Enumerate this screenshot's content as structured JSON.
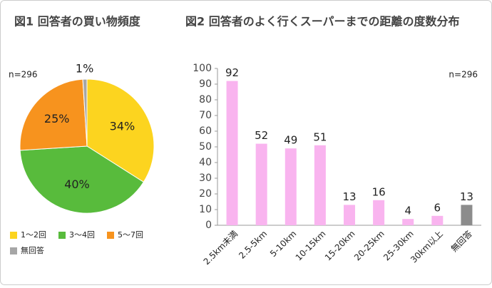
{
  "chart_data": [
    {
      "type": "pie",
      "title": "図1 回答者の買い物頻度",
      "annotation": "n=296",
      "categories": [
        "1～2回",
        "3～4回",
        "5～7回",
        "無回答"
      ],
      "values": [
        34,
        40,
        25,
        1
      ],
      "value_labels": [
        "34%",
        "40%",
        "25%",
        "1%"
      ],
      "colors": [
        "#fcd41f",
        "#58bb3c",
        "#f7931e",
        "#a6a6a6"
      ]
    },
    {
      "type": "bar",
      "title": "図2 回答者のよく行くスーパーまでの距離の度数分布",
      "annotation": "n=296",
      "categories": [
        "2.5km未満",
        "2.5-5km",
        "5-10km",
        "10-15km",
        "15-20km",
        "20-25km",
        "25-30km",
        "30km以上",
        "無回答"
      ],
      "values": [
        92,
        52,
        49,
        51,
        13,
        16,
        4,
        6,
        13
      ],
      "colors": [
        "#f9b4ef",
        "#f9b4ef",
        "#f9b4ef",
        "#f9b4ef",
        "#f9b4ef",
        "#f9b4ef",
        "#f9b4ef",
        "#f9b4ef",
        "#8c8c8c"
      ],
      "ylim": [
        0,
        100
      ],
      "yticks": [
        0,
        10,
        20,
        30,
        40,
        50,
        60,
        70,
        80,
        90,
        100
      ],
      "grid": false
    }
  ]
}
